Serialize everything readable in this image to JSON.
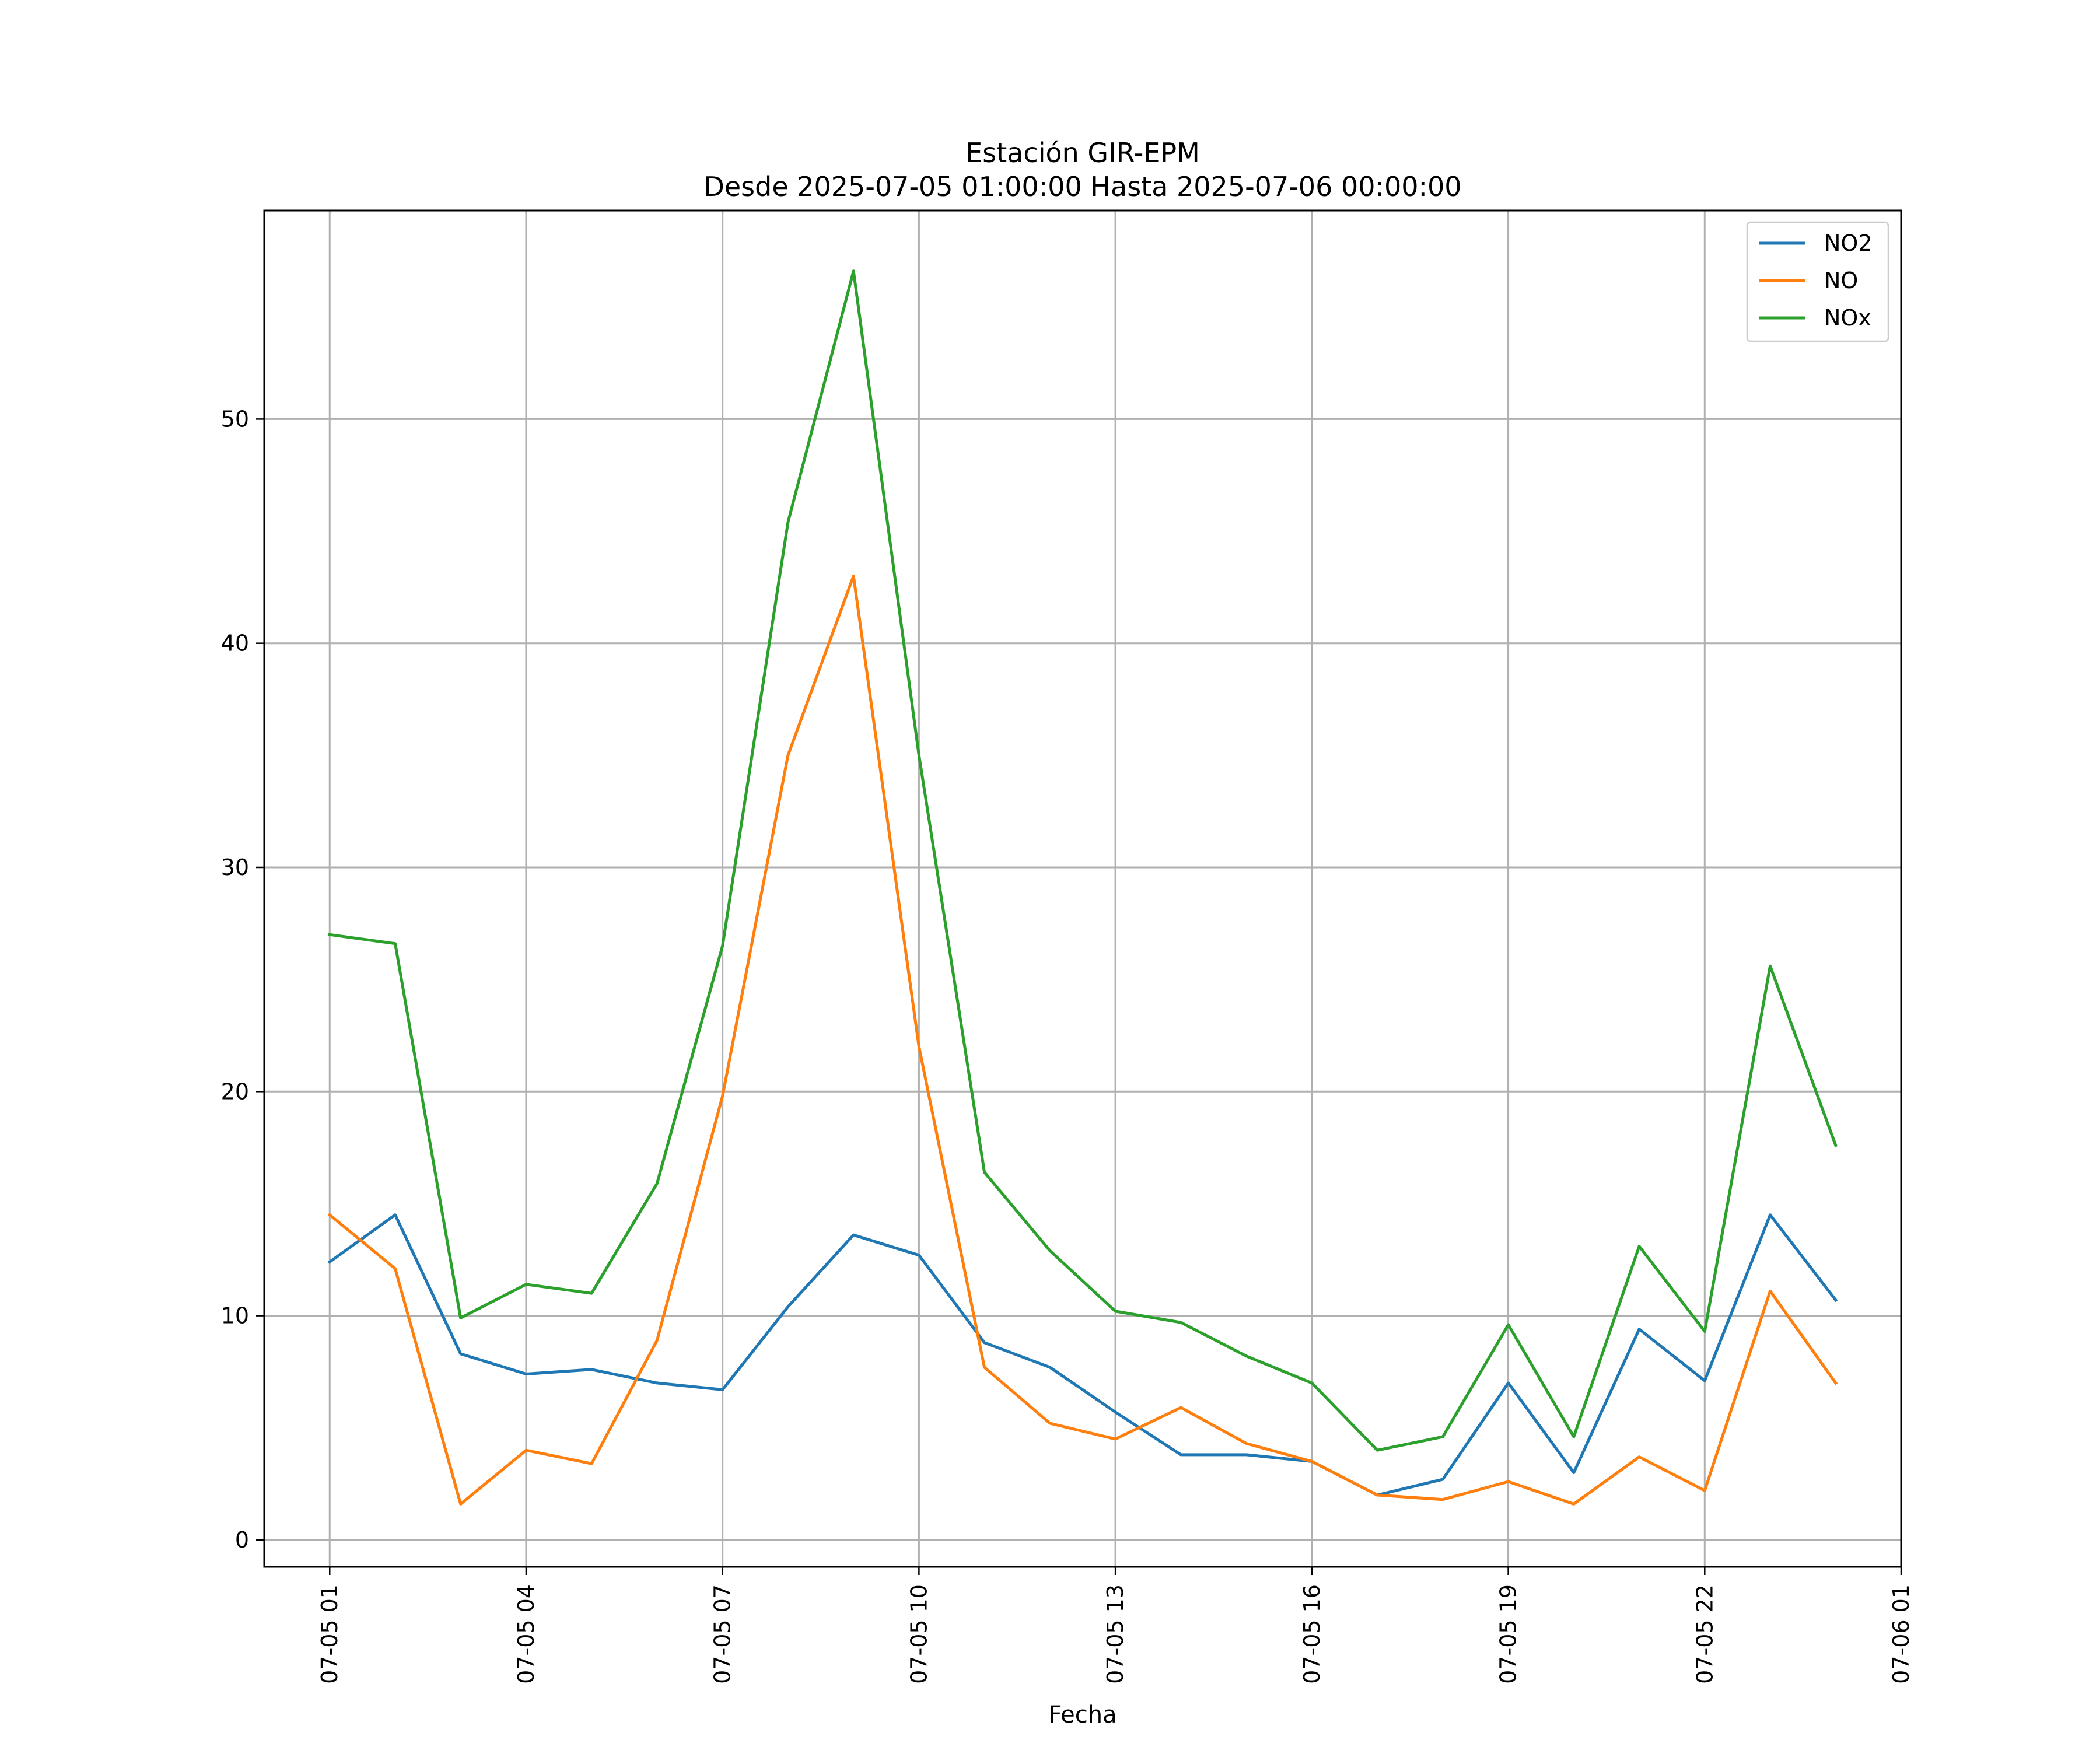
{
  "chart_data": {
    "type": "line",
    "title": "Estación GIR-EPM",
    "subtitle": "Desde 2025-07-05 01:00:00 Hasta 2025-07-06 00:00:00",
    "xlabel": "Fecha",
    "ylabel": "",
    "grid": true,
    "legend_position": "top-right",
    "x": [
      "2025-07-05 01:00",
      "2025-07-05 02:00",
      "2025-07-05 03:00",
      "2025-07-05 04:00",
      "2025-07-05 05:00",
      "2025-07-05 06:00",
      "2025-07-05 07:00",
      "2025-07-05 08:00",
      "2025-07-05 09:00",
      "2025-07-05 10:00",
      "2025-07-05 11:00",
      "2025-07-05 12:00",
      "2025-07-05 13:00",
      "2025-07-05 14:00",
      "2025-07-05 15:00",
      "2025-07-05 16:00",
      "2025-07-05 17:00",
      "2025-07-05 18:00",
      "2025-07-05 19:00",
      "2025-07-05 20:00",
      "2025-07-05 21:00",
      "2025-07-05 22:00",
      "2025-07-05 23:00",
      "2025-07-06 00:00"
    ],
    "xlim": [
      "2025-07-05 00:00",
      "2025-07-06 01:00"
    ],
    "xticks": [
      "2025-07-05 01:00",
      "2025-07-05 04:00",
      "2025-07-05 07:00",
      "2025-07-05 10:00",
      "2025-07-05 13:00",
      "2025-07-05 16:00",
      "2025-07-05 19:00",
      "2025-07-05 22:00",
      "2025-07-06 01:00"
    ],
    "xtick_labels": [
      "07-05 01",
      "07-05 04",
      "07-05 07",
      "07-05 10",
      "07-05 13",
      "07-05 16",
      "07-05 19",
      "07-05 22",
      "07-06 01"
    ],
    "ylim": [
      -1.2,
      59.3
    ],
    "yticks": [
      0,
      10,
      20,
      30,
      40,
      50
    ],
    "ytick_labels": [
      "0",
      "10",
      "20",
      "30",
      "40",
      "50"
    ],
    "series": [
      {
        "name": "NO2",
        "color": "#1f77b4",
        "values": [
          12.4,
          14.5,
          8.3,
          7.4,
          7.6,
          7.0,
          6.7,
          10.4,
          13.6,
          12.7,
          8.8,
          7.7,
          5.7,
          3.8,
          3.8,
          3.5,
          2.0,
          2.7,
          7.0,
          3.0,
          9.4,
          7.1,
          14.5,
          10.7
        ]
      },
      {
        "name": "NO",
        "color": "#ff7f0e",
        "values": [
          14.5,
          12.1,
          1.6,
          4.0,
          3.4,
          8.9,
          19.8,
          35.0,
          43.0,
          22.0,
          7.7,
          5.2,
          4.5,
          5.9,
          4.3,
          3.5,
          2.0,
          1.8,
          2.6,
          1.6,
          3.7,
          2.2,
          11.1,
          7.0
        ]
      },
      {
        "name": "NOx",
        "color": "#2ca02c",
        "values": [
          27.0,
          26.6,
          9.9,
          11.4,
          11.0,
          15.9,
          26.5,
          45.4,
          56.6,
          35.0,
          16.4,
          12.9,
          10.2,
          9.7,
          8.2,
          7.0,
          4.0,
          4.6,
          9.6,
          4.6,
          13.1,
          9.3,
          25.6,
          17.6
        ]
      }
    ]
  }
}
